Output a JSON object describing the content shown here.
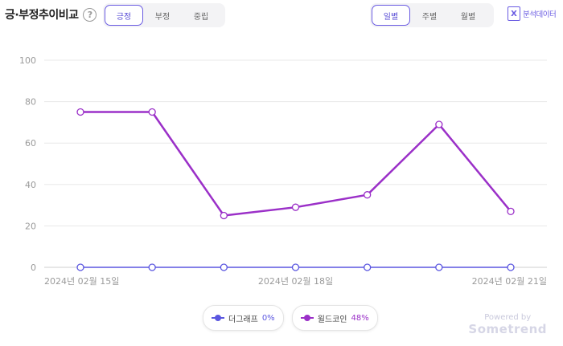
{
  "header": {
    "title": "긍·부정추이비교",
    "help_icon": "question-circle-icon",
    "sentiment_tabs": [
      "긍정",
      "부정",
      "중립"
    ],
    "sentiment_active": "긍정",
    "period_tabs": [
      "일별",
      "주별",
      "월별"
    ],
    "period_active": "일별",
    "export_icon": "excel-icon",
    "export_label": "분석데이터"
  },
  "chart_data": {
    "type": "line",
    "x": [
      "2024-02-15",
      "2024-02-16",
      "2024-02-17",
      "2024-02-18",
      "2024-02-19",
      "2024-02-20",
      "2024-02-21"
    ],
    "x_tick_labels": [
      {
        "x": "2024-02-15",
        "label": "2024년 02월 15일"
      },
      {
        "x": "2024-02-18",
        "label": "2024년 02월 18일"
      },
      {
        "x": "2024-02-21",
        "label": "2024년 02월 21일"
      }
    ],
    "y_ticks": [
      0,
      20,
      40,
      60,
      80,
      100
    ],
    "ylim": [
      0,
      100
    ],
    "grid": true,
    "series": [
      {
        "name": "더그래프",
        "color": "#5b57e0",
        "values": [
          0,
          0,
          0,
          0,
          0,
          0,
          0
        ]
      },
      {
        "name": "윌드코인",
        "color": "#9b30c8",
        "values": [
          75,
          75,
          25,
          29,
          35,
          69,
          27
        ]
      }
    ]
  },
  "legend": [
    {
      "name": "더그래프",
      "pct": "0%",
      "color": "#5b57e0"
    },
    {
      "name": "윌드코인",
      "pct": "48%",
      "color": "#9b30c8"
    }
  ],
  "footer": {
    "powered_by": "Powered by",
    "brand": "Sometrend"
  }
}
